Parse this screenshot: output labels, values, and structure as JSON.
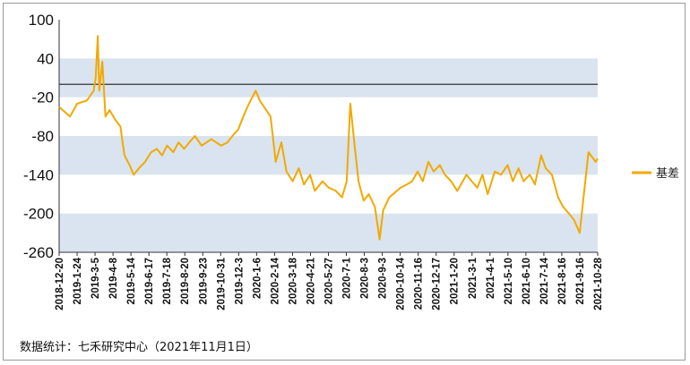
{
  "chart_data": {
    "type": "line",
    "title": "",
    "xlabel": "",
    "ylabel": "",
    "ylim": [
      -260,
      100
    ],
    "yticks": [
      100,
      40,
      -20,
      -80,
      -140,
      -200,
      -260
    ],
    "shaded_bands": [
      [
        -20,
        40
      ],
      [
        -140,
        -80
      ],
      [
        -260,
        -200
      ]
    ],
    "reference_line": 0,
    "x_tick_labels": [
      "2018-12-20",
      "2019-1-24",
      "2019-3-5",
      "2019-4-8",
      "2019-5-14",
      "2019-6-17",
      "2019-7-18",
      "2019-8-20",
      "2019-9-23",
      "2019-10-31",
      "2019-12-3",
      "2020-1-6",
      "2020-2-14",
      "2020-3-18",
      "2020-4-21",
      "2020-5-27",
      "2020-7-1",
      "2020-8-3",
      "2020-9-3",
      "2020-10-14",
      "2020-11-16",
      "2020-12-17",
      "2021-1-20",
      "2021-3-1",
      "2021-4-1",
      "2021-5-10",
      "2021-6-10",
      "2021-7-14",
      "2021-8-16",
      "2021-9-16",
      "2021-10-28"
    ],
    "legend_position": "right",
    "series": [
      {
        "name": "基差",
        "color": "#f2a900",
        "x": [
          "2018-12-20",
          "2019-1-10",
          "2019-1-24",
          "2019-2-12",
          "2019-2-25",
          "2019-3-1",
          "2019-3-5",
          "2019-3-8",
          "2019-3-14",
          "2019-3-20",
          "2019-3-28",
          "2019-4-8",
          "2019-4-18",
          "2019-4-26",
          "2019-5-6",
          "2019-5-14",
          "2019-5-24",
          "2019-6-5",
          "2019-6-17",
          "2019-6-28",
          "2019-7-8",
          "2019-7-18",
          "2019-7-30",
          "2019-8-9",
          "2019-8-20",
          "2019-8-30",
          "2019-9-10",
          "2019-9-23",
          "2019-10-12",
          "2019-10-31",
          "2019-11-12",
          "2019-11-22",
          "2019-12-3",
          "2019-12-13",
          "2019-12-24",
          "2020-1-6",
          "2020-1-14",
          "2020-2-4",
          "2020-2-14",
          "2020-2-25",
          "2020-3-6",
          "2020-3-18",
          "2020-3-30",
          "2020-4-9",
          "2020-4-21",
          "2020-4-30",
          "2020-5-15",
          "2020-5-27",
          "2020-6-10",
          "2020-6-22",
          "2020-7-1",
          "2020-7-8",
          "2020-7-17",
          "2020-7-24",
          "2020-8-3",
          "2020-8-13",
          "2020-8-25",
          "2020-9-3",
          "2020-9-10",
          "2020-9-22",
          "2020-10-14",
          "2020-10-26",
          "2020-11-5",
          "2020-11-16",
          "2020-11-26",
          "2020-12-7",
          "2020-12-17",
          "2020-12-29",
          "2021-1-8",
          "2021-1-20",
          "2021-2-1",
          "2021-2-19",
          "2021-3-1",
          "2021-3-12",
          "2021-3-22",
          "2021-4-1",
          "2021-4-15",
          "2021-4-27",
          "2021-5-10",
          "2021-5-20",
          "2021-5-31",
          "2021-6-10",
          "2021-6-22",
          "2021-7-2",
          "2021-7-14",
          "2021-7-23",
          "2021-8-4",
          "2021-8-16",
          "2021-8-26",
          "2021-9-6",
          "2021-9-16",
          "2021-9-27",
          "2021-10-14",
          "2021-10-28",
          "2021-11-1"
        ],
        "values": [
          -35,
          -50,
          -30,
          -25,
          -10,
          10,
          75,
          -10,
          35,
          -50,
          -40,
          -55,
          -65,
          -110,
          -125,
          -140,
          -130,
          -120,
          -105,
          -100,
          -110,
          -95,
          -105,
          -90,
          -100,
          -90,
          -80,
          -95,
          -85,
          -95,
          -90,
          -80,
          -70,
          -50,
          -30,
          -10,
          -25,
          -50,
          -120,
          -90,
          -135,
          -150,
          -130,
          -155,
          -140,
          -165,
          -150,
          -160,
          -165,
          -175,
          -150,
          -30,
          -100,
          -150,
          -180,
          -170,
          -190,
          -240,
          -195,
          -175,
          -160,
          -155,
          -150,
          -135,
          -150,
          -120,
          -135,
          -125,
          -140,
          -150,
          -165,
          -140,
          -150,
          -160,
          -140,
          -170,
          -135,
          -140,
          -125,
          -150,
          -130,
          -150,
          -140,
          -155,
          -110,
          -130,
          -140,
          -175,
          -190,
          -200,
          -210,
          -230,
          -105,
          -120,
          -115
        ]
      }
    ]
  },
  "footer": {
    "source": "数据统计：七禾研究中心（2021年11月1日）"
  }
}
